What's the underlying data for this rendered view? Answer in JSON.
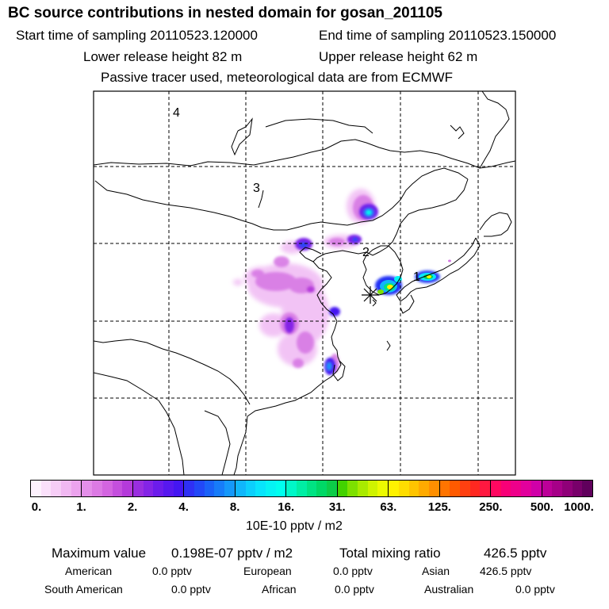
{
  "title": "BC  source contributions in nested domain for gosan_201105",
  "header": {
    "start_time": "Start time of sampling 20110523.120000",
    "end_time": "End time of sampling 20110523.150000",
    "lower_release": "Lower release height   82 m",
    "upper_release": "Upper release height   62 m",
    "tracer_info": "Passive tracer used, meteorological data are from ECMWF"
  },
  "map": {
    "region_labels": [
      "4",
      "3",
      "2",
      "1"
    ],
    "receptor_name": "gosan"
  },
  "colorbar": {
    "tick_labels": [
      "0.",
      "1.",
      "2.",
      "4.",
      "8.",
      "16.",
      "31.",
      "63.",
      "125.",
      "250.",
      "500.",
      "1000."
    ],
    "units": "10E-10 pptv / m2",
    "colors": [
      [
        "#fdf2fd",
        "#fae0fa",
        "#f6cdf6",
        "#f1b8f2",
        "#eca3ee"
      ],
      [
        "#e48fe9",
        "#dc7ae4",
        "#d365e0",
        "#c44fdd",
        "#b43ada"
      ],
      [
        "#9a2ee0",
        "#8424e6",
        "#6c1ceb",
        "#5718ef",
        "#4416f2"
      ],
      [
        "#2f30f5",
        "#2248f7",
        "#1a62f8",
        "#177cf9",
        "#1598fa"
      ],
      [
        "#10b6fb",
        "#0ccffc",
        "#08e4fc",
        "#05f3f4",
        "#00ffee"
      ],
      [
        "#00f7c8",
        "#00eea4",
        "#00e383",
        "#00d866",
        "#0ccc48"
      ],
      [
        "#42d200",
        "#7de000",
        "#a9ea00",
        "#cff300",
        "#ecfa00"
      ],
      [
        "#fff200",
        "#ffdd00",
        "#ffc400",
        "#ffaa00",
        "#ff8f00"
      ],
      [
        "#ff7400",
        "#ff5a00",
        "#ff4010",
        "#ff2820",
        "#ff1840"
      ],
      [
        "#ff0860",
        "#f80077",
        "#ee008a",
        "#e2009c",
        "#d000a8"
      ],
      [
        "#bc0098",
        "#a60088",
        "#8f0078",
        "#78006a",
        "#60005c"
      ]
    ]
  },
  "stats": {
    "max_label": "Maximum value",
    "max_value": "0.198E-07 pptv / m2",
    "total_label": "Total mixing ratio",
    "total_value": "426.5 pptv",
    "regions": [
      {
        "name": "American",
        "value": "0.0 pptv"
      },
      {
        "name": "European",
        "value": "0.0 pptv"
      },
      {
        "name": "Asian",
        "value": "426.5 pptv"
      },
      {
        "name": "South American",
        "value": "0.0 pptv"
      },
      {
        "name": "African",
        "value": "0.0 pptv"
      },
      {
        "name": "Australian",
        "value": "0.0 pptv"
      }
    ]
  }
}
